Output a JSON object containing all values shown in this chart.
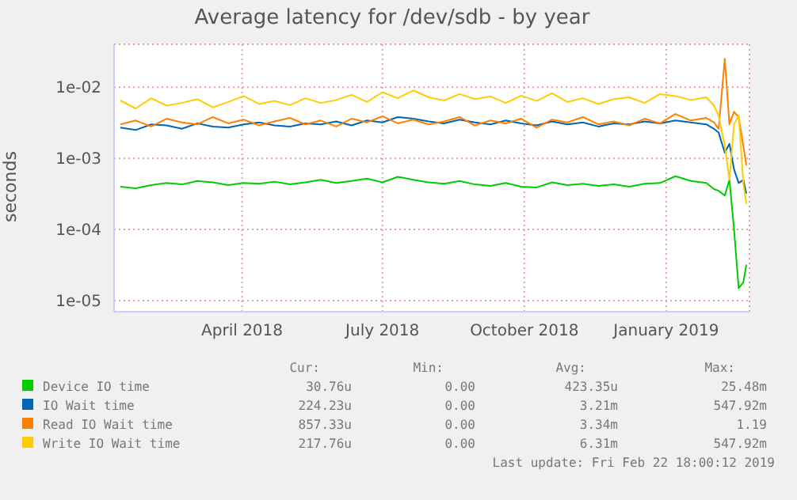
{
  "chart_data": {
    "type": "line",
    "title": "Average latency for /dev/sdb - by year",
    "ylabel": "seconds",
    "log": "y",
    "grid": true,
    "legend": "bottom",
    "x": [
      "2018-01-12",
      "2018-01-22",
      "2018-02-01",
      "2018-02-11",
      "2018-02-21",
      "2018-03-03",
      "2018-03-13",
      "2018-03-23",
      "2018-04-02",
      "2018-04-12",
      "2018-04-22",
      "2018-05-02",
      "2018-05-12",
      "2018-05-22",
      "2018-06-01",
      "2018-06-11",
      "2018-06-21",
      "2018-07-01",
      "2018-07-11",
      "2018-07-21",
      "2018-07-31",
      "2018-08-10",
      "2018-08-20",
      "2018-08-30",
      "2018-09-09",
      "2018-09-19",
      "2018-09-29",
      "2018-10-09",
      "2018-10-19",
      "2018-10-29",
      "2018-11-08",
      "2018-11-18",
      "2018-11-28",
      "2018-12-08",
      "2018-12-18",
      "2018-12-28",
      "2019-01-07",
      "2019-01-17",
      "2019-01-27",
      "2019-02-01",
      "2019-02-04",
      "2019-02-08",
      "2019-02-11",
      "2019-02-14",
      "2019-02-17",
      "2019-02-20",
      "2019-02-22"
    ],
    "xlim": [
      "2018-01-08",
      "2019-02-24"
    ],
    "xticks": [
      {
        "value": "2018-04-01",
        "label": "April 2018"
      },
      {
        "value": "2018-07-01",
        "label": "July 2018"
      },
      {
        "value": "2018-10-01",
        "label": "October 2018"
      },
      {
        "value": "2019-01-01",
        "label": "January 2019"
      }
    ],
    "ylim": [
      7e-06,
      0.04
    ],
    "yticks": [
      {
        "value": 1e-05,
        "label": "1e-05"
      },
      {
        "value": 0.0001,
        "label": "1e-04"
      },
      {
        "value": 0.001,
        "label": "1e-03"
      },
      {
        "value": 0.01,
        "label": "1e-02"
      }
    ],
    "series": [
      {
        "name": "Device IO time",
        "color": "#00cc00",
        "values": [
          0.0004,
          0.00038,
          0.00042,
          0.00045,
          0.00043,
          0.00048,
          0.00046,
          0.00042,
          0.00045,
          0.00044,
          0.00047,
          0.00043,
          0.00046,
          0.0005,
          0.00045,
          0.00048,
          0.00052,
          0.00046,
          0.00055,
          0.0005,
          0.00046,
          0.00044,
          0.00048,
          0.00043,
          0.00041,
          0.00045,
          0.0004,
          0.00039,
          0.00046,
          0.00042,
          0.00044,
          0.00041,
          0.00043,
          0.0004,
          0.00044,
          0.00045,
          0.00056,
          0.00048,
          0.00045,
          0.00037,
          0.00035,
          0.0003,
          0.0005,
          0.0001,
          1.5e-05,
          1.8e-05,
          3.2e-05
        ]
      },
      {
        "name": "IO Wait time",
        "color": "#0066b3",
        "values": [
          0.0027,
          0.0025,
          0.003,
          0.0029,
          0.0026,
          0.0031,
          0.0028,
          0.0027,
          0.003,
          0.0032,
          0.0029,
          0.0028,
          0.0031,
          0.003,
          0.0033,
          0.0029,
          0.0034,
          0.0032,
          0.0038,
          0.0036,
          0.0033,
          0.0031,
          0.0035,
          0.0032,
          0.003,
          0.0034,
          0.0031,
          0.0029,
          0.0033,
          0.003,
          0.0032,
          0.0028,
          0.0031,
          0.003,
          0.0033,
          0.0031,
          0.0034,
          0.0032,
          0.003,
          0.0026,
          0.0023,
          0.0012,
          0.0016,
          0.0007,
          0.00045,
          0.0005,
          0.00032
        ]
      },
      {
        "name": "Read IO Wait time",
        "color": "#ff8000",
        "values": [
          0.003,
          0.0034,
          0.0028,
          0.0036,
          0.0032,
          0.003,
          0.0038,
          0.0031,
          0.0035,
          0.0029,
          0.0033,
          0.0037,
          0.003,
          0.0034,
          0.0028,
          0.0036,
          0.0032,
          0.0039,
          0.0031,
          0.0035,
          0.003,
          0.0033,
          0.0038,
          0.0029,
          0.0034,
          0.0031,
          0.0036,
          0.0027,
          0.0035,
          0.0032,
          0.0038,
          0.003,
          0.0033,
          0.0029,
          0.0036,
          0.0031,
          0.0042,
          0.0034,
          0.0037,
          0.0032,
          0.0026,
          0.025,
          0.003,
          0.0045,
          0.0038,
          0.0015,
          0.0008
        ]
      },
      {
        "name": "Write IO Wait time",
        "color": "#ffcc00",
        "values": [
          0.0065,
          0.005,
          0.007,
          0.0055,
          0.006,
          0.0068,
          0.0052,
          0.0062,
          0.0075,
          0.0058,
          0.0064,
          0.0056,
          0.007,
          0.006,
          0.0066,
          0.0078,
          0.0062,
          0.0085,
          0.007,
          0.009,
          0.0072,
          0.0065,
          0.008,
          0.0068,
          0.0074,
          0.006,
          0.0076,
          0.0064,
          0.0082,
          0.0062,
          0.007,
          0.0058,
          0.0068,
          0.0072,
          0.006,
          0.008,
          0.0075,
          0.0066,
          0.0072,
          0.0055,
          0.004,
          0.0015,
          0.0005,
          0.003,
          0.004,
          0.00045,
          0.00023
        ]
      }
    ],
    "annotations": [
      "Cur:",
      "Min:",
      "Avg:",
      "Max:",
      "30.76u",
      "0.00",
      "423.35u",
      "25.48m",
      "224.23u",
      "0.00",
      "3.21m",
      "547.92m",
      "857.33u",
      "0.00",
      "3.34m",
      "1.19",
      "217.76u",
      "0.00",
      "6.31m",
      "547.92m",
      "Last update: Fri Feb 22 18:00:12 2019"
    ]
  }
}
